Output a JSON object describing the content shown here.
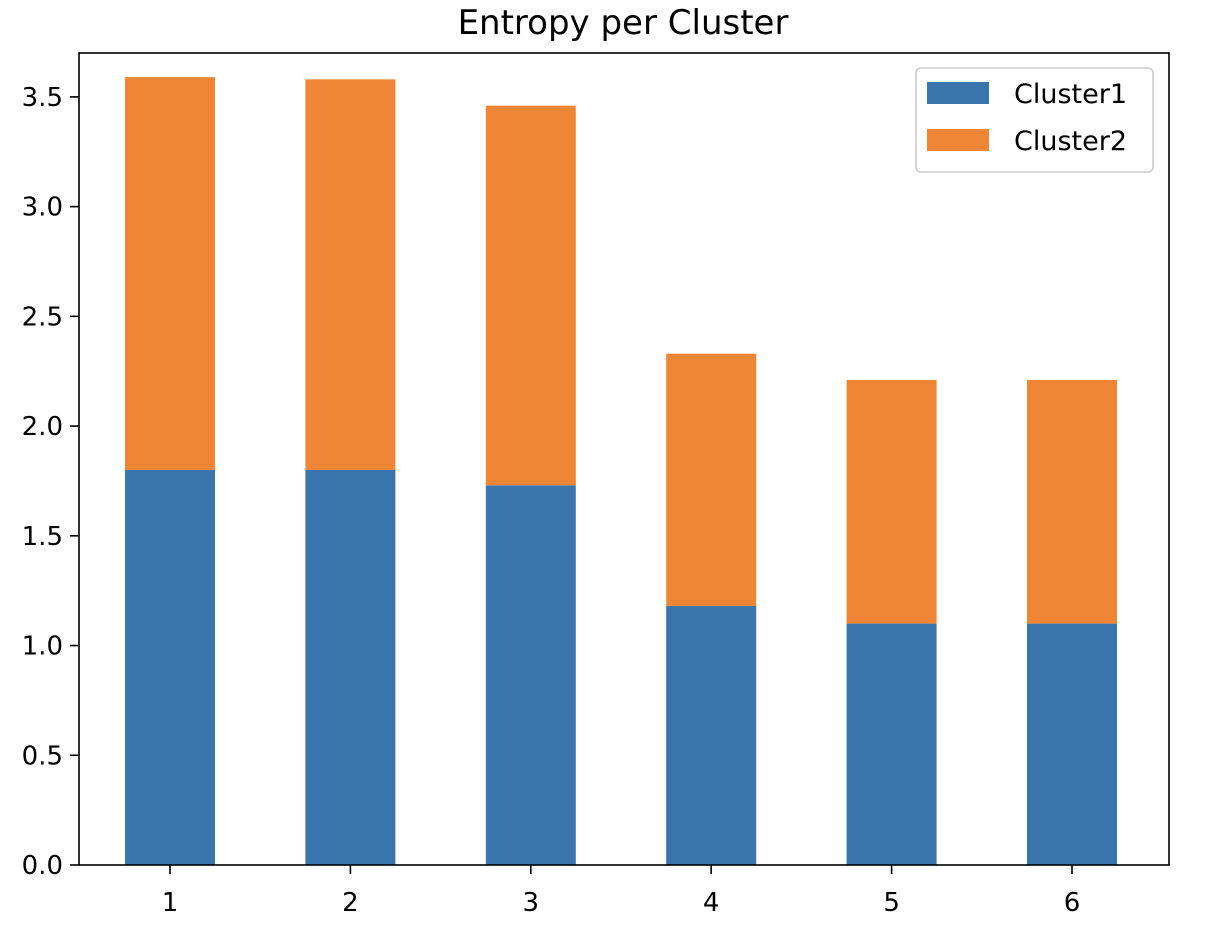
{
  "chart_data": {
    "type": "bar",
    "stacked": true,
    "title": "Entropy per Cluster",
    "xlabel": "",
    "ylabel": "",
    "categories": [
      "1",
      "2",
      "3",
      "4",
      "5",
      "6"
    ],
    "series": [
      {
        "name": "Cluster1",
        "color": "#3a75ae",
        "values": [
          1.8,
          1.8,
          1.73,
          1.18,
          1.1,
          1.1
        ]
      },
      {
        "name": "Cluster2",
        "color": "#ef8636",
        "values": [
          1.79,
          1.78,
          1.73,
          1.15,
          1.11,
          1.11
        ]
      }
    ],
    "ylim": [
      0,
      3.7
    ],
    "yticks": [
      "0.0",
      "0.5",
      "1.0",
      "1.5",
      "2.0",
      "2.5",
      "3.0",
      "3.5"
    ],
    "grid": false,
    "legend_position": "top-right"
  }
}
